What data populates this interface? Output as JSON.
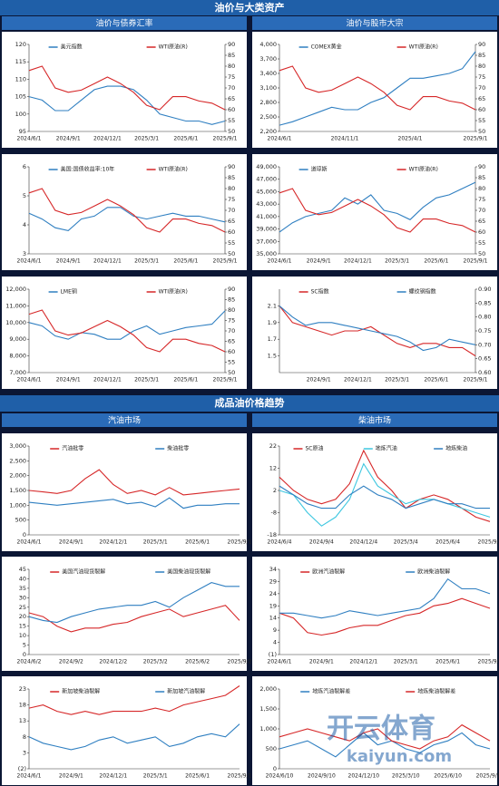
{
  "page": {
    "title1": "油价与大类资产",
    "sub1": [
      "油价与债券汇率",
      "油价与股市大宗"
    ],
    "title2": "成品油价格趋势",
    "sub2": [
      "汽油市场",
      "柴油市场"
    ],
    "watermark": [
      "开云体育",
      "kaiyun.com"
    ]
  },
  "chart_data": [
    {
      "type": "line",
      "categories": [
        "2024/6/1",
        null,
        null,
        "2024/9/1",
        null,
        null,
        "2024/12/1",
        null,
        null,
        "2025/3/1",
        null,
        null,
        "2025/6/1",
        null,
        null,
        "2025/9/1"
      ],
      "series": [
        {
          "name": "美元指数",
          "color": "#2f7fc1",
          "values": [
            105,
            104,
            101,
            101,
            104,
            107,
            108,
            108,
            107,
            104,
            100,
            99,
            98,
            98,
            97,
            98
          ]
        },
        {
          "name": "WTI原油(R)",
          "color": "#d62728",
          "axis": "y2",
          "values": [
            78,
            80,
            70,
            68,
            69,
            72,
            75,
            72,
            68,
            62,
            60,
            66,
            66,
            64,
            63,
            60
          ]
        }
      ],
      "ylim": [
        95,
        120
      ],
      "yticks": [
        95,
        100,
        105,
        110,
        115,
        120
      ],
      "y2lim": [
        50,
        90
      ],
      "y2ticks": [
        50,
        55,
        60,
        65,
        70,
        75,
        80,
        85,
        90
      ]
    },
    {
      "type": "line",
      "categories": [
        "2024/6/1",
        null,
        null,
        null,
        null,
        "2024/11/1",
        null,
        null,
        null,
        null,
        "2025/4/1",
        null,
        null,
        null,
        null,
        "2025/9/1"
      ],
      "series": [
        {
          "name": "COMEX黄金",
          "color": "#2f7fc1",
          "values": [
            2330,
            2400,
            2500,
            2600,
            2700,
            2650,
            2650,
            2800,
            2900,
            3100,
            3300,
            3300,
            3350,
            3400,
            3500,
            3850
          ]
        },
        {
          "name": "WTI原油(R)",
          "color": "#d62728",
          "axis": "y2",
          "values": [
            78,
            80,
            70,
            68,
            69,
            72,
            75,
            72,
            68,
            62,
            60,
            66,
            66,
            64,
            63,
            60
          ]
        }
      ],
      "ylim": [
        2200,
        4000
      ],
      "yticks": [
        {
          "value": 2200,
          "label": "2,200"
        },
        {
          "value": 2500,
          "label": "2,500"
        },
        {
          "value": 2800,
          "label": "2,800"
        },
        {
          "value": 3100,
          "label": "3,100"
        },
        {
          "value": 3400,
          "label": "3,400"
        },
        {
          "value": 3700,
          "label": "3,700"
        },
        {
          "value": 4000,
          "label": "4,000"
        }
      ],
      "y2lim": [
        50,
        90
      ],
      "y2ticks": [
        50,
        55,
        60,
        65,
        70,
        75,
        80,
        85,
        90
      ]
    },
    {
      "type": "line",
      "categories": [
        "2024/6/1",
        null,
        null,
        "2024/9/1",
        null,
        null,
        "2024/12/1",
        null,
        null,
        "2025/3/1",
        null,
        null,
        "2025/6/1",
        null,
        null,
        "2025/9/1"
      ],
      "series": [
        {
          "name": "美国:国债收益率:10年",
          "color": "#2f7fc1",
          "values": [
            4.4,
            4.2,
            3.9,
            3.8,
            4.2,
            4.3,
            4.6,
            4.6,
            4.3,
            4.2,
            4.3,
            4.4,
            4.3,
            4.3,
            4.2,
            4.1
          ]
        },
        {
          "name": "WTI原油(R)",
          "color": "#d62728",
          "axis": "y2",
          "values": [
            78,
            80,
            70,
            68,
            69,
            72,
            75,
            72,
            68,
            62,
            60,
            66,
            66,
            64,
            63,
            60
          ]
        }
      ],
      "ylim": [
        3,
        6
      ],
      "yticks": [
        3,
        4,
        5,
        6
      ],
      "y2lim": [
        50,
        90
      ],
      "y2ticks": [
        50,
        55,
        60,
        65,
        70,
        75,
        80,
        85,
        90
      ]
    },
    {
      "type": "line",
      "categories": [
        "2024/6/1",
        null,
        null,
        "2024/9/1",
        null,
        null,
        "2024/12/1",
        null,
        null,
        "2025/3/1",
        null,
        null,
        "2025/6/1",
        null,
        null,
        "2025/9/1"
      ],
      "series": [
        {
          "name": "道琼斯",
          "color": "#2f7fc1",
          "values": [
            38500,
            40000,
            41000,
            41500,
            42000,
            44000,
            43000,
            44500,
            42000,
            41500,
            40500,
            42500,
            44000,
            44500,
            45500,
            46500
          ]
        },
        {
          "name": "WTI原油(R)",
          "color": "#d62728",
          "axis": "y2",
          "values": [
            78,
            80,
            70,
            68,
            69,
            72,
            75,
            72,
            68,
            62,
            60,
            66,
            66,
            64,
            63,
            60
          ]
        }
      ],
      "ylim": [
        35000,
        49000
      ],
      "yticks": [
        {
          "value": 35000,
          "label": "35,000"
        },
        {
          "value": 37000,
          "label": "37,000"
        },
        {
          "value": 39000,
          "label": "39,000"
        },
        {
          "value": 41000,
          "label": "41,000"
        },
        {
          "value": 43000,
          "label": "43,000"
        },
        {
          "value": 45000,
          "label": "45,000"
        },
        {
          "value": 47000,
          "label": "47,000"
        },
        {
          "value": 49000,
          "label": "49,000"
        }
      ],
      "y2lim": [
        50,
        90
      ],
      "y2ticks": [
        50,
        55,
        60,
        65,
        70,
        75,
        80,
        85,
        90
      ]
    },
    {
      "type": "line",
      "categories": [
        "2024/6/1",
        null,
        null,
        "2024/9/1",
        null,
        null,
        "2024/12/1",
        null,
        null,
        "2025/3/1",
        null,
        null,
        "2025/6/1",
        null,
        null,
        "2025/9/1"
      ],
      "series": [
        {
          "name": "LME铜",
          "color": "#2f7fc1",
          "values": [
            10000,
            9800,
            9200,
            9000,
            9400,
            9300,
            9000,
            9000,
            9500,
            9800,
            9300,
            9500,
            9700,
            9800,
            9900,
            10700
          ]
        },
        {
          "name": "WTI原油(R)",
          "color": "#d62728",
          "axis": "y2",
          "values": [
            78,
            80,
            70,
            68,
            69,
            72,
            75,
            72,
            68,
            62,
            60,
            66,
            66,
            64,
            63,
            60
          ]
        }
      ],
      "ylim": [
        7000,
        12000
      ],
      "yticks": [
        {
          "value": 7000,
          "label": "7,000"
        },
        {
          "value": 8000,
          "label": "8,000"
        },
        {
          "value": 9000,
          "label": "9,000"
        },
        {
          "value": 10000,
          "label": "10,000"
        },
        {
          "value": 11000,
          "label": "11,000"
        },
        {
          "value": 12000,
          "label": "12,000"
        }
      ],
      "y2lim": [
        50,
        90
      ],
      "y2ticks": [
        50,
        55,
        60,
        65,
        70,
        75,
        80,
        85,
        90
      ]
    },
    {
      "type": "line",
      "categories": [
        null,
        null,
        null,
        "2024/9/1",
        null,
        null,
        "2024/12/1",
        null,
        null,
        "2025/3/1",
        null,
        null,
        "2025/6/1",
        null,
        null,
        "2025/9/1"
      ],
      "series": [
        {
          "name": "SC指数",
          "color": "#d62728",
          "values": [
            2.1,
            1.9,
            1.85,
            1.8,
            1.75,
            1.8,
            1.8,
            1.85,
            1.75,
            1.65,
            1.6,
            1.65,
            1.65,
            1.6,
            1.6,
            1.5
          ]
        },
        {
          "name": "螺纹钢指数",
          "color": "#2f7fc1",
          "axis": "y2",
          "values": [
            0.84,
            0.8,
            0.77,
            0.78,
            0.78,
            0.77,
            0.76,
            0.75,
            0.74,
            0.73,
            0.71,
            0.68,
            0.69,
            0.72,
            0.71,
            0.7
          ]
        }
      ],
      "ylim": [
        1.3,
        2.3
      ],
      "yticks": [
        1.5,
        1.7,
        1.9,
        2.1
      ],
      "y2lim": [
        0.6,
        0.9
      ],
      "y2ticks": [
        {
          "value": 0.6,
          "label": "0.60"
        },
        {
          "value": 0.65,
          "label": "0.65"
        },
        {
          "value": 0.7,
          "label": "0.70"
        },
        {
          "value": 0.75,
          "label": "0.75"
        },
        {
          "value": 0.8,
          "label": "0.80"
        },
        {
          "value": 0.85,
          "label": "0.85"
        },
        {
          "value": 0.9,
          "label": "0.90"
        }
      ]
    },
    {
      "type": "line",
      "categories": [
        "2024/6/1",
        null,
        null,
        "2024/9/1",
        null,
        null,
        "2024/12/1",
        null,
        null,
        "2025/3/1",
        null,
        null,
        "2025/6/1",
        null,
        null,
        "2025/9/1"
      ],
      "series": [
        {
          "name": "汽油批零",
          "color": "#d62728",
          "values": [
            1500,
            1450,
            1400,
            1500,
            1900,
            2200,
            1700,
            1400,
            1500,
            1350,
            1600,
            1350,
            1400,
            1450,
            1500,
            1550
          ]
        },
        {
          "name": "柴油批零",
          "color": "#2f7fc1",
          "values": [
            1100,
            1050,
            1000,
            1050,
            1100,
            1150,
            1200,
            1050,
            1100,
            950,
            1250,
            900,
            1000,
            1000,
            1050,
            1050
          ]
        }
      ],
      "ylim": [
        0,
        3000
      ],
      "yticks": [
        0,
        500,
        {
          "value": 1000,
          "label": "1,000"
        },
        {
          "value": 1500,
          "label": "1,500"
        },
        {
          "value": 2000,
          "label": "2,000"
        },
        {
          "value": 2500,
          "label": "2,500"
        },
        {
          "value": 3000,
          "label": "3,000"
        }
      ]
    },
    {
      "type": "line",
      "categories": [
        "2024/6/4",
        null,
        null,
        "2024/9/4",
        null,
        null,
        "2024/12/4",
        null,
        null,
        "2025/3/4",
        null,
        null,
        "2025/6/4",
        null,
        null,
        "2025/9/4"
      ],
      "series": [
        {
          "name": "SC原油",
          "color": "#d62728",
          "values": [
            8,
            2,
            -2,
            -4,
            -2,
            5,
            20,
            8,
            2,
            -6,
            -2,
            0,
            -2,
            -6,
            -10,
            -12
          ]
        },
        {
          "name": "地炼汽油",
          "color": "#3ec7e0",
          "values": [
            2,
            0,
            -8,
            -14,
            -10,
            -2,
            14,
            4,
            0,
            -4,
            -2,
            -2,
            -4,
            -6,
            -8,
            -10
          ]
        },
        {
          "name": "地炼柴油",
          "color": "#2f7fc1",
          "values": [
            4,
            0,
            -4,
            -6,
            -6,
            0,
            4,
            0,
            -2,
            -6,
            -4,
            -2,
            -4,
            -4,
            -6,
            -6
          ]
        }
      ],
      "ylim": [
        -18,
        22
      ],
      "yticks": [
        -18,
        -8,
        2,
        12,
        22
      ]
    },
    {
      "type": "line",
      "categories": [
        "2024/6/2",
        null,
        null,
        "2024/9/2",
        null,
        null,
        "2024/12/2",
        null,
        null,
        "2025/3/2",
        null,
        null,
        "2025/6/2",
        null,
        null,
        "2025/9/2"
      ],
      "series": [
        {
          "name": "美国汽油现货裂解",
          "color": "#d62728",
          "values": [
            22,
            20,
            15,
            12,
            14,
            14,
            16,
            17,
            20,
            22,
            24,
            20,
            22,
            24,
            26,
            18
          ]
        },
        {
          "name": "美国柴油现货裂解",
          "color": "#2f7fc1",
          "values": [
            20,
            18,
            17,
            20,
            22,
            24,
            25,
            26,
            26,
            28,
            25,
            30,
            34,
            38,
            36,
            36
          ]
        }
      ],
      "ylim": [
        0,
        45
      ],
      "yticks": [
        0,
        5,
        10,
        15,
        20,
        25,
        30,
        35,
        40,
        45
      ]
    },
    {
      "type": "line",
      "categories": [
        "2024/6/1",
        null,
        null,
        "2024/9/1",
        null,
        null,
        "2024/12/1",
        null,
        null,
        "2025/3/1",
        null,
        null,
        "2025/6/1",
        null,
        null,
        "2025/9/1"
      ],
      "series": [
        {
          "name": "欧洲汽油裂解",
          "color": "#d62728",
          "values": [
            16,
            14,
            8,
            7,
            8,
            10,
            11,
            11,
            13,
            15,
            16,
            19,
            20,
            22,
            20,
            18
          ]
        },
        {
          "name": "欧洲柴油裂解",
          "color": "#2f7fc1",
          "values": [
            16,
            16,
            15,
            14,
            15,
            17,
            16,
            15,
            16,
            17,
            18,
            22,
            30,
            26,
            26,
            24
          ]
        }
      ],
      "ylim": [
        -1,
        34
      ],
      "yticks": [
        {
          "value": -1,
          "label": "(1)"
        },
        4,
        9,
        14,
        19,
        24,
        29,
        34
      ]
    },
    {
      "type": "line",
      "categories": [
        "2024/6/1",
        null,
        null,
        "2024/9/1",
        null,
        null,
        "2024/12/1",
        null,
        null,
        "2025/3/1",
        null,
        null,
        "2025/6/1",
        null,
        null,
        "2025/9/1"
      ],
      "series": [
        {
          "name": "新加坡柴油裂解",
          "color": "#d62728",
          "values": [
            17,
            18,
            16,
            15,
            16,
            15,
            16,
            16,
            16,
            17,
            16,
            18,
            19,
            20,
            21,
            24
          ]
        },
        {
          "name": "新加坡汽油裂解",
          "color": "#2f7fc1",
          "values": [
            8,
            6,
            5,
            4,
            5,
            7,
            8,
            6,
            7,
            8,
            5,
            6,
            8,
            9,
            8,
            12
          ]
        }
      ],
      "ylim": [
        -2,
        23
      ],
      "yticks": [
        {
          "value": -2,
          "label": "(2)"
        },
        3,
        8,
        13,
        18,
        23
      ]
    },
    {
      "type": "line",
      "categories": [
        "2024/6/10",
        null,
        null,
        "2024/9/10",
        null,
        null,
        "2024/12/10",
        null,
        null,
        "2025/3/10",
        null,
        null,
        "2025/6/10",
        null,
        null,
        "2025/9/10"
      ],
      "series": [
        {
          "name": "地炼汽油裂解差",
          "color": "#2f7fc1",
          "values": [
            500,
            600,
            700,
            500,
            300,
            600,
            900,
            600,
            700,
            500,
            400,
            600,
            700,
            900,
            600,
            500
          ]
        },
        {
          "name": "地炼柴油裂解差",
          "color": "#d62728",
          "values": [
            800,
            900,
            1000,
            900,
            800,
            700,
            900,
            1000,
            700,
            600,
            500,
            700,
            800,
            1100,
            900,
            700
          ]
        }
      ],
      "ylim": [
        0,
        2000
      ],
      "yticks": [
        0,
        500,
        {
          "value": 1000,
          "label": "1,000"
        },
        {
          "value": 1500,
          "label": "1,500"
        },
        {
          "value": 2000,
          "label": "2,000"
        }
      ]
    }
  ]
}
